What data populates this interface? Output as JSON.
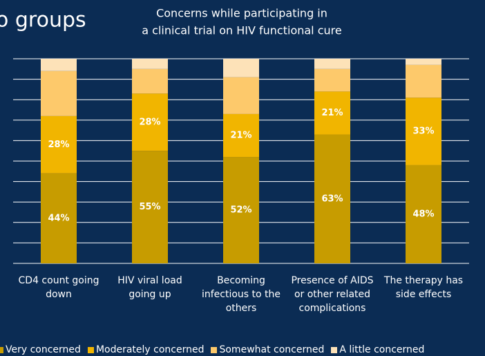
{
  "heading": "o groups",
  "chart_data": {
    "type": "stacked_bar",
    "title": [
      "Concerns while participating in",
      "a clinical trial on HIV functional cure"
    ],
    "categories": [
      "CD4 count going down",
      "HIV viral load going up",
      "Becoming infectious to the others",
      "Presence of AIDS or other related complications",
      "The therapy has side effects"
    ],
    "series": [
      {
        "name": "Very concerned",
        "color": "#c79c00",
        "values": [
          44,
          55,
          52,
          63,
          48
        ],
        "value_labels": [
          "44%",
          "55%",
          "52%",
          "63%",
          "48%"
        ]
      },
      {
        "name": "Moderately concerned",
        "color": "#f1b500",
        "values": [
          28,
          28,
          21,
          21,
          33
        ],
        "value_labels": [
          "28%",
          "28%",
          "21%",
          "21%",
          "33%"
        ]
      },
      {
        "name": "Somewhat concerned",
        "color": "#fdc96b",
        "values": [
          22,
          12,
          18,
          11,
          16
        ]
      },
      {
        "name": "A little concerned",
        "color": "#fde2b8",
        "values": [
          6,
          5,
          9,
          5,
          3
        ]
      }
    ],
    "ylim": [
      0,
      100
    ],
    "yticks": [
      0,
      10,
      20,
      30,
      40,
      50,
      60,
      70,
      80,
      90,
      100
    ],
    "grid": true,
    "legend": "bottom"
  }
}
